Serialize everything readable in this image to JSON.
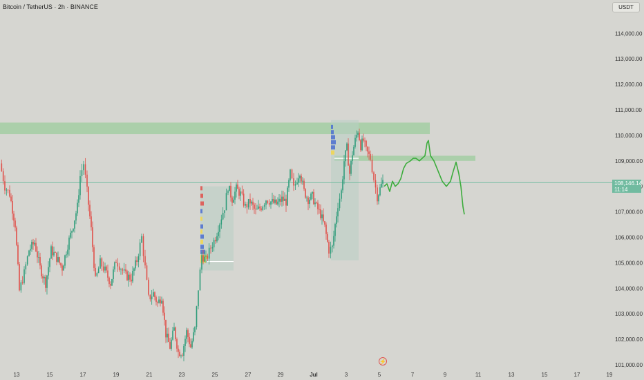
{
  "header": {
    "title": "Bitcoin / TetherUS · 2h · BINANCE",
    "unit_button": "USDT"
  },
  "price_tag": {
    "price": "108,146.14",
    "countdown": "11:14"
  },
  "colors": {
    "up": "#2e9c7a",
    "down": "#e0504a",
    "zone": "#9ccc9c",
    "projection": "#3cac3c",
    "price_line": "#71bba0",
    "volume_blue": "#4a6fd0",
    "volume_yellow": "#f2d74d"
  },
  "chart_data": {
    "type": "candlestick",
    "symbol": "BTCUSDT",
    "timeframe": "2h",
    "exchange": "BINANCE",
    "y_ticks": [
      101000,
      102000,
      103000,
      104000,
      105000,
      106000,
      107000,
      108000,
      109000,
      110000,
      111000,
      112000,
      113000,
      114000
    ],
    "y_tick_labels": [
      "101,000.00",
      "102,000.00",
      "103,000.00",
      "104,000.00",
      "105,000.00",
      "106,000.00",
      "107,000.00",
      "108,000.00",
      "109,000.00",
      "110,000.00",
      "111,000.00",
      "112,000.00",
      "113,000.00",
      "114,000.00"
    ],
    "ylim": [
      100700,
      115000
    ],
    "x_tick_labels": [
      "13",
      "15",
      "17",
      "19",
      "21",
      "23",
      "25",
      "27",
      "29",
      "Jul",
      "3",
      "5",
      "7",
      "9",
      "11",
      "13",
      "15",
      "17",
      "19"
    ],
    "current_price": 108146.14,
    "path": [
      [
        0,
        108900
      ],
      [
        7,
        108000
      ],
      [
        14,
        107700
      ],
      [
        22,
        106500
      ],
      [
        28,
        103900
      ],
      [
        35,
        104600
      ],
      [
        42,
        105500
      ],
      [
        50,
        105800
      ],
      [
        58,
        104800
      ],
      [
        66,
        104200
      ],
      [
        74,
        105500
      ],
      [
        82,
        105200
      ],
      [
        90,
        104800
      ],
      [
        98,
        105700
      ],
      [
        106,
        106500
      ],
      [
        112,
        107200
      ],
      [
        116,
        108400
      ],
      [
        121,
        108900
      ],
      [
        126,
        107800
      ],
      [
        132,
        106300
      ],
      [
        138,
        104300
      ],
      [
        145,
        105000
      ],
      [
        152,
        104700
      ],
      [
        160,
        104200
      ],
      [
        168,
        105100
      ],
      [
        175,
        104800
      ],
      [
        182,
        104500
      ],
      [
        190,
        104400
      ],
      [
        198,
        105100
      ],
      [
        205,
        106000
      ],
      [
        210,
        104800
      ],
      [
        215,
        103600
      ],
      [
        222,
        103800
      ],
      [
        228,
        103400
      ],
      [
        234,
        103700
      ],
      [
        240,
        102200
      ],
      [
        246,
        101700
      ],
      [
        252,
        102400
      ],
      [
        258,
        101500
      ],
      [
        264,
        101500
      ],
      [
        270,
        102300
      ],
      [
        276,
        101700
      ],
      [
        282,
        102400
      ],
      [
        287,
        104000
      ],
      [
        292,
        105300
      ],
      [
        298,
        105100
      ],
      [
        305,
        105600
      ],
      [
        312,
        106000
      ],
      [
        318,
        106600
      ],
      [
        325,
        107200
      ],
      [
        330,
        108000
      ],
      [
        336,
        107500
      ],
      [
        342,
        107900
      ],
      [
        348,
        107700
      ],
      [
        355,
        107200
      ],
      [
        362,
        107400
      ],
      [
        370,
        107000
      ],
      [
        378,
        107200
      ],
      [
        385,
        107500
      ],
      [
        392,
        107400
      ],
      [
        400,
        107300
      ],
      [
        408,
        107500
      ],
      [
        414,
        107400
      ],
      [
        420,
        108500
      ],
      [
        425,
        107900
      ],
      [
        430,
        108300
      ],
      [
        434,
        108600
      ],
      [
        440,
        107800
      ],
      [
        446,
        107500
      ],
      [
        452,
        107600
      ],
      [
        458,
        107200
      ],
      [
        464,
        106900
      ],
      [
        470,
        106400
      ],
      [
        476,
        105500
      ],
      [
        481,
        105600
      ],
      [
        485,
        106500
      ],
      [
        489,
        107300
      ],
      [
        494,
        107800
      ],
      [
        498,
        109000
      ],
      [
        502,
        109500
      ],
      [
        506,
        108500
      ],
      [
        510,
        109300
      ],
      [
        514,
        109800
      ],
      [
        518,
        110200
      ],
      [
        522,
        109600
      ],
      [
        526,
        109800
      ],
      [
        530,
        109400
      ],
      [
        536,
        109100
      ],
      [
        541,
        108300
      ],
      [
        546,
        107600
      ],
      [
        550,
        107900
      ],
      [
        554,
        108200
      ]
    ],
    "resistance_zone": {
      "from_day": "Jun 13",
      "to_day": "Jul 8",
      "y_low": 110050,
      "y_high": 110500
    },
    "secondary_zone": {
      "from_day": "Jul 2",
      "to_day": "Jul 11",
      "y_low": 109000,
      "y_high": 109200
    },
    "projection_path": [
      [
        556,
        108000
      ],
      [
        560,
        108100
      ],
      [
        564,
        107800
      ],
      [
        568,
        108200
      ],
      [
        572,
        108000
      ],
      [
        576,
        108100
      ],
      [
        580,
        108300
      ],
      [
        584,
        108700
      ],
      [
        588,
        108900
      ],
      [
        594,
        109000
      ],
      [
        598,
        109100
      ],
      [
        602,
        109100
      ],
      [
        607,
        109000
      ],
      [
        611,
        109100
      ],
      [
        615,
        109200
      ],
      [
        618,
        109700
      ],
      [
        620,
        109800
      ],
      [
        623,
        109200
      ],
      [
        628,
        109000
      ],
      [
        634,
        108600
      ],
      [
        640,
        108200
      ],
      [
        646,
        108000
      ],
      [
        652,
        108200
      ],
      [
        656,
        108600
      ],
      [
        660,
        108950
      ],
      [
        664,
        108500
      ],
      [
        667,
        108000
      ],
      [
        670,
        107200
      ],
      [
        672,
        106900
      ]
    ]
  }
}
